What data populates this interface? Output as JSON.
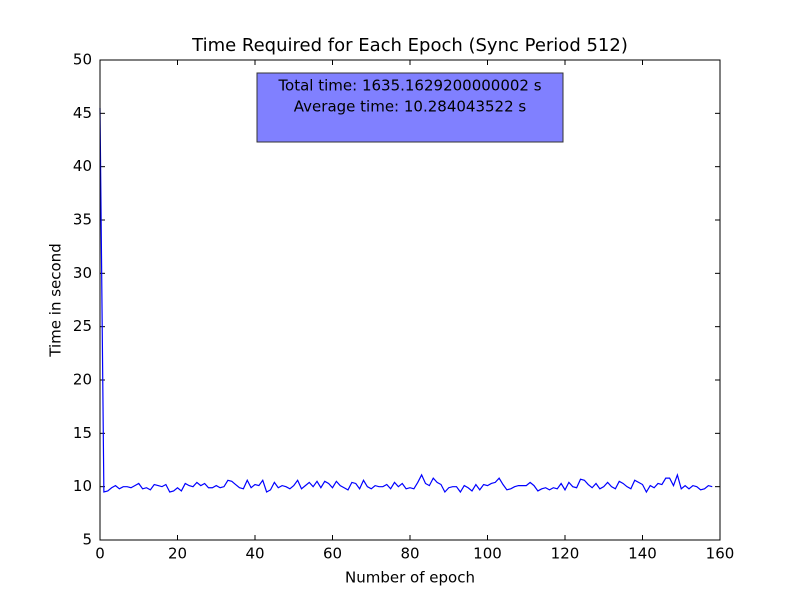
{
  "chart_data": {
    "type": "line",
    "title": "Time Required for Each Epoch (Sync Period 512)",
    "xlabel": "Number of epoch",
    "ylabel": "Time in second",
    "annotation": {
      "lines": [
        "Total time: 1635.1629200000002 s",
        "Average time: 10.284043522 s"
      ],
      "color": "#8080ff"
    },
    "x": [
      0,
      1,
      2,
      3,
      4,
      5,
      6,
      7,
      8,
      9,
      10,
      11,
      12,
      13,
      14,
      15,
      16,
      17,
      18,
      19,
      20,
      21,
      22,
      23,
      24,
      25,
      26,
      27,
      28,
      29,
      30,
      31,
      32,
      33,
      34,
      35,
      36,
      37,
      38,
      39,
      40,
      41,
      42,
      43,
      44,
      45,
      46,
      47,
      48,
      49,
      50,
      51,
      52,
      53,
      54,
      55,
      56,
      57,
      58,
      59,
      60,
      61,
      62,
      63,
      64,
      65,
      66,
      67,
      68,
      69,
      70,
      71,
      72,
      73,
      74,
      75,
      76,
      77,
      78,
      79,
      80,
      81,
      82,
      83,
      84,
      85,
      86,
      87,
      88,
      89,
      90,
      91,
      92,
      93,
      94,
      95,
      96,
      97,
      98,
      99,
      100,
      101,
      102,
      103,
      104,
      105,
      106,
      107,
      108,
      109,
      110,
      111,
      112,
      113,
      114,
      115,
      116,
      117,
      118,
      119,
      120,
      121,
      122,
      123,
      124,
      125,
      126,
      127,
      128,
      129,
      130,
      131,
      132,
      133,
      134,
      135,
      136,
      137,
      138,
      139,
      140,
      141,
      142,
      143,
      144,
      145,
      146,
      147,
      148,
      149,
      150,
      151,
      152,
      153,
      154,
      155,
      156,
      157,
      158
    ],
    "series": [
      {
        "name": "Time",
        "color": "#0000ff",
        "values": [
          45.5,
          9.5,
          9.6,
          9.9,
          10.1,
          9.8,
          10.0,
          10.0,
          9.9,
          10.1,
          10.3,
          9.8,
          9.9,
          9.7,
          10.2,
          10.1,
          10.0,
          10.2,
          9.5,
          9.6,
          9.9,
          9.6,
          10.3,
          10.1,
          10.0,
          10.4,
          10.1,
          10.3,
          9.9,
          9.9,
          10.1,
          9.9,
          10.0,
          10.6,
          10.5,
          10.2,
          9.9,
          9.8,
          10.6,
          9.9,
          10.2,
          10.1,
          10.6,
          9.5,
          9.7,
          10.4,
          9.9,
          10.1,
          10.0,
          9.8,
          10.1,
          10.6,
          9.8,
          10.1,
          10.4,
          10.0,
          10.5,
          9.9,
          10.5,
          10.3,
          9.9,
          10.5,
          10.1,
          9.9,
          9.7,
          10.4,
          10.3,
          9.8,
          10.6,
          10.0,
          9.8,
          10.1,
          10.0,
          10.0,
          10.2,
          9.8,
          10.4,
          10.0,
          10.3,
          9.8,
          9.9,
          9.8,
          10.4,
          11.1,
          10.3,
          10.1,
          10.8,
          10.4,
          10.2,
          9.5,
          9.9,
          10.0,
          10.0,
          9.5,
          10.1,
          9.9,
          9.6,
          10.2,
          9.7,
          10.2,
          10.1,
          10.3,
          10.4,
          10.8,
          10.2,
          9.7,
          9.8,
          10.0,
          10.1,
          10.1,
          10.1,
          10.4,
          10.1,
          9.6,
          9.8,
          9.9,
          9.7,
          9.9,
          9.8,
          10.3,
          9.7,
          10.4,
          10.0,
          9.9,
          10.7,
          10.6,
          10.2,
          9.9,
          10.3,
          9.8,
          10.0,
          10.4,
          10.0,
          9.8,
          10.5,
          10.3,
          10.0,
          9.8,
          10.6,
          10.4,
          10.2,
          9.5,
          10.1,
          9.9,
          10.3,
          10.2,
          10.8,
          10.8,
          10.1,
          11.1,
          9.8,
          10.1,
          9.8,
          10.1,
          10.0,
          9.7,
          9.8,
          10.1,
          10.0
        ]
      }
    ],
    "xlim": [
      0,
      160
    ],
    "xticks": [
      0,
      20,
      40,
      60,
      80,
      100,
      120,
      140,
      160
    ],
    "ylim": [
      5,
      50
    ],
    "yticks": [
      5,
      10,
      15,
      20,
      25,
      30,
      35,
      40,
      45,
      50
    ],
    "grid": false
  }
}
